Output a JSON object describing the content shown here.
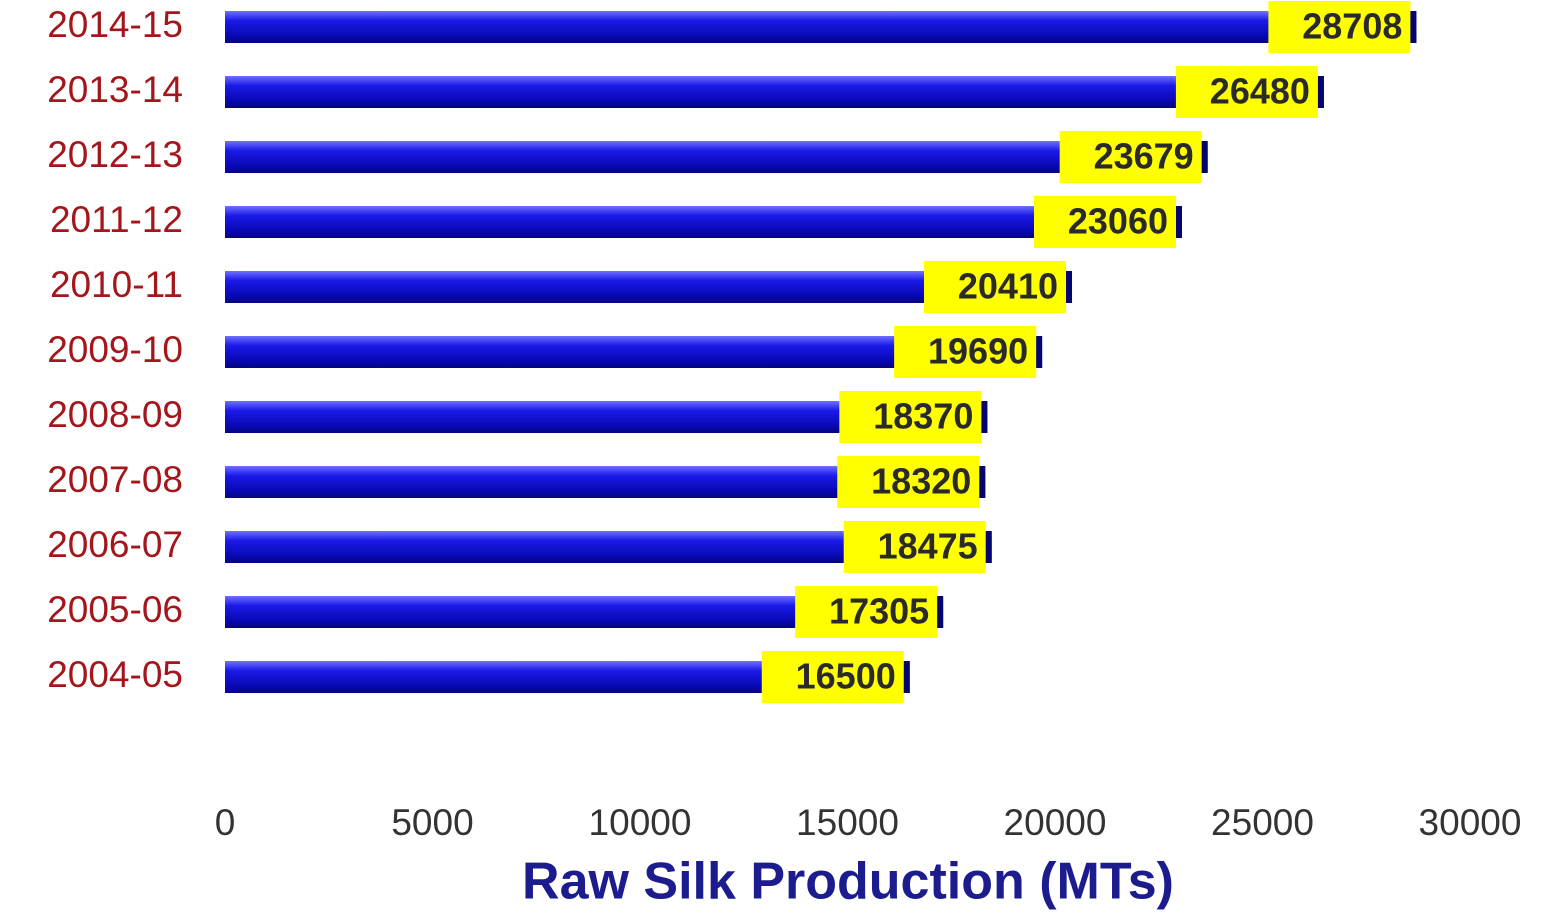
{
  "chart_data": {
    "type": "bar",
    "orientation": "horizontal",
    "x_label": "Raw Silk Production (MTs)",
    "categories": [
      "2014-15",
      "2013-14",
      "2012-13",
      "2011-12",
      "2010-11",
      "2009-10",
      "2008-09",
      "2007-08",
      "2006-07",
      "2005-06",
      "2004-05"
    ],
    "values": [
      28708,
      26480,
      23679,
      23060,
      20410,
      19690,
      18370,
      18320,
      18475,
      17305,
      16500
    ],
    "color": "#1010d8",
    "label_color": "#ffff00",
    "xlim": [
      0,
      30000
    ],
    "xticks": [
      0,
      5000,
      10000,
      15000,
      20000,
      25000,
      30000
    ],
    "grid": false
  }
}
